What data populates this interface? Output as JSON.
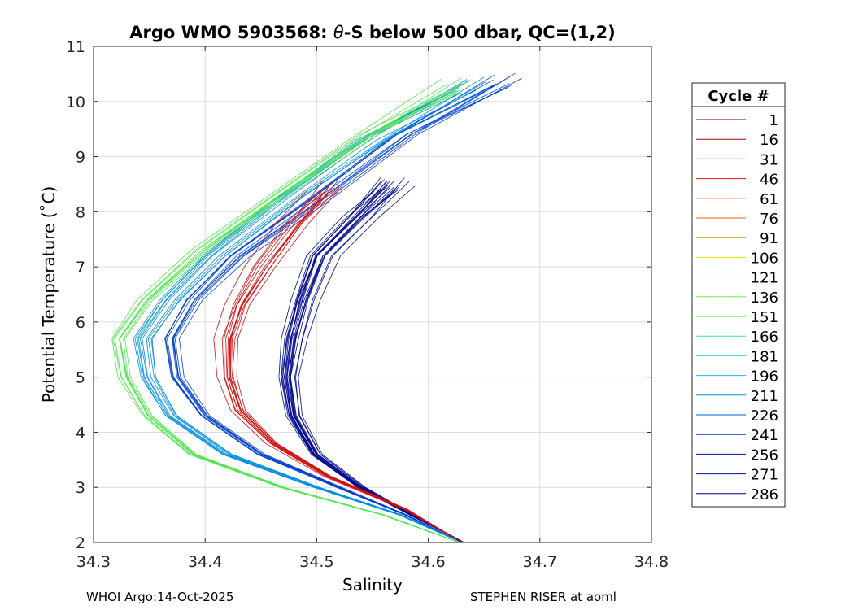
{
  "chart_data": {
    "type": "line",
    "title_prefix": "Argo WMO 5903568: ",
    "title_theta": "θ",
    "title_suffix": "-S below 500 dbar,  QC=(1,2)",
    "xlabel": "Salinity",
    "ylabel": "Potential Temperature (˚C)",
    "xlim": [
      34.3,
      34.8
    ],
    "ylim": [
      2,
      11
    ],
    "xticks": [
      "34.3",
      "34.4",
      "34.5",
      "34.6",
      "34.7",
      "34.8"
    ],
    "yticks": [
      "2",
      "3",
      "4",
      "5",
      "6",
      "7",
      "8",
      "9",
      "10",
      "11"
    ],
    "grid": true,
    "legend": {
      "title": "Cycle #",
      "placement": "outside-right",
      "entries": [
        {
          "label": "1",
          "color": "#7a0000"
        },
        {
          "label": "16",
          "color": "#a00000"
        },
        {
          "label": "31",
          "color": "#c80000"
        },
        {
          "label": "46",
          "color": "#e01010"
        },
        {
          "label": "61",
          "color": "#ee3010"
        },
        {
          "label": "76",
          "color": "#f06010"
        },
        {
          "label": "91",
          "color": "#c8a000"
        },
        {
          "label": "106",
          "color": "#e8e000"
        },
        {
          "label": "121",
          "color": "#b8f020"
        },
        {
          "label": "136",
          "color": "#70f040"
        },
        {
          "label": "151",
          "color": "#40e840"
        },
        {
          "label": "166",
          "color": "#30e8a0"
        },
        {
          "label": "181",
          "color": "#20e0d0"
        },
        {
          "label": "196",
          "color": "#10c0e8"
        },
        {
          "label": "211",
          "color": "#0090e0"
        },
        {
          "label": "226",
          "color": "#0060d8"
        },
        {
          "label": "241",
          "color": "#0030c0"
        },
        {
          "label": "256",
          "color": "#0010a8"
        },
        {
          "label": "271",
          "color": "#000890"
        },
        {
          "label": "286",
          "color": "#000080"
        }
      ]
    },
    "series_groups": [
      {
        "name": "cycles 241-286",
        "color": "#000a90",
        "count": 20,
        "points": [
          [
            34.632,
            2.0
          ],
          [
            34.585,
            2.5
          ],
          [
            34.54,
            3.0
          ],
          [
            34.5,
            3.6
          ],
          [
            34.48,
            4.3
          ],
          [
            34.475,
            5.0
          ],
          [
            34.48,
            5.7
          ],
          [
            34.49,
            6.4
          ],
          [
            34.505,
            7.2
          ],
          [
            34.54,
            7.9
          ],
          [
            34.57,
            8.5
          ]
        ]
      },
      {
        "name": "cycles 226-241",
        "color": "#0040d0",
        "count": 10,
        "points": [
          [
            34.63,
            2.0
          ],
          [
            34.58,
            2.5
          ],
          [
            34.52,
            3.0
          ],
          [
            34.45,
            3.6
          ],
          [
            34.4,
            4.3
          ],
          [
            34.375,
            5.0
          ],
          [
            34.37,
            5.7
          ],
          [
            34.39,
            6.4
          ],
          [
            34.43,
            7.2
          ],
          [
            34.5,
            8.2
          ],
          [
            34.58,
            9.4
          ],
          [
            34.67,
            10.4
          ]
        ]
      },
      {
        "name": "cycles 181-226",
        "color": "#0090e0",
        "count": 10,
        "points": [
          [
            34.63,
            2.0
          ],
          [
            34.575,
            2.5
          ],
          [
            34.5,
            3.0
          ],
          [
            34.42,
            3.6
          ],
          [
            34.37,
            4.3
          ],
          [
            34.35,
            5.0
          ],
          [
            34.345,
            5.7
          ],
          [
            34.37,
            6.4
          ],
          [
            34.41,
            7.2
          ],
          [
            34.48,
            8.3
          ],
          [
            34.55,
            9.3
          ],
          [
            34.64,
            10.3
          ]
        ]
      },
      {
        "name": "cycles 121-166",
        "color": "#50e850",
        "count": 10,
        "points": [
          [
            34.628,
            2.0
          ],
          [
            34.56,
            2.5
          ],
          [
            34.47,
            3.0
          ],
          [
            34.39,
            3.6
          ],
          [
            34.35,
            4.3
          ],
          [
            34.33,
            5.0
          ],
          [
            34.325,
            5.7
          ],
          [
            34.35,
            6.4
          ],
          [
            34.4,
            7.3
          ],
          [
            34.47,
            8.3
          ],
          [
            34.55,
            9.4
          ],
          [
            34.63,
            10.3
          ]
        ]
      },
      {
        "name": "cycles 1-91",
        "color": "#d01010",
        "count": 12,
        "points": [
          [
            34.63,
            2.0
          ],
          [
            34.58,
            2.6
          ],
          [
            34.51,
            3.2
          ],
          [
            34.46,
            3.8
          ],
          [
            34.43,
            4.4
          ],
          [
            34.42,
            5.0
          ],
          [
            34.42,
            5.7
          ],
          [
            34.43,
            6.3
          ],
          [
            34.45,
            7.0
          ],
          [
            34.48,
            7.8
          ],
          [
            34.51,
            8.5
          ]
        ]
      }
    ]
  },
  "footer": {
    "left": "WHOI Argo:14-Oct-2025",
    "right": "STEPHEN RISER at aoml"
  }
}
